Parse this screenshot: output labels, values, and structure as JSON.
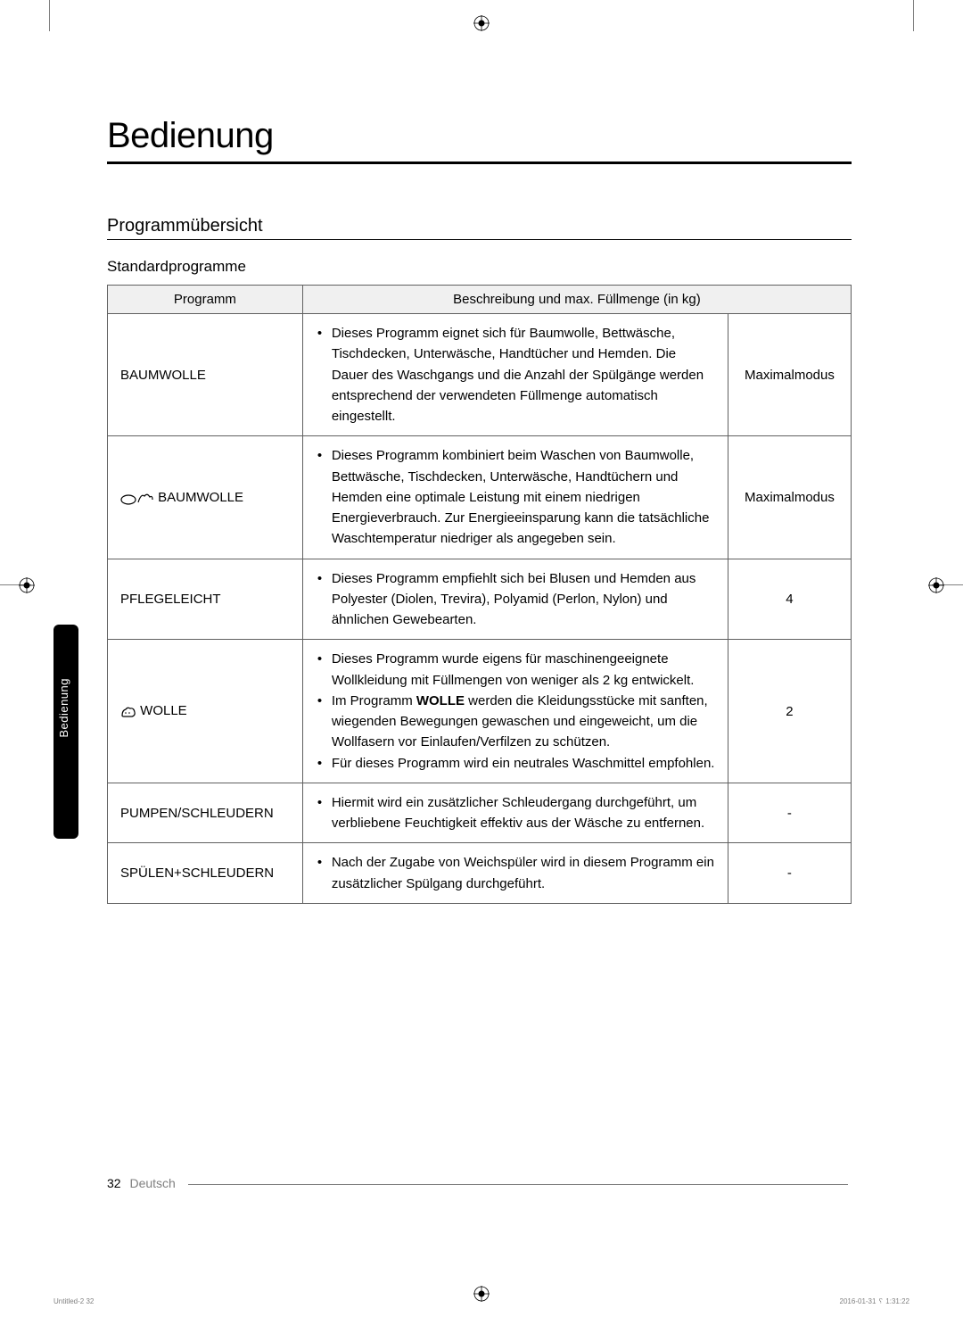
{
  "page": {
    "main_heading": "Bedienung",
    "section_heading": "Programmübersicht",
    "subsection_heading": "Standardprogramme",
    "side_tab": "Bedienung",
    "page_number": "32",
    "language": "Deutsch",
    "print_left": "Untitled-2   32",
    "print_right": "2016-01-31   ␦ 1:31:22"
  },
  "table": {
    "header_program": "Programm",
    "header_desc": "Beschreibung und max. Füllmenge (in kg)",
    "rows": [
      {
        "program": "BAUMWOLLE",
        "icon": null,
        "descriptions": [
          "Dieses Programm eignet sich für Baumwolle, Bettwäsche, Tischdecken, Unterwäsche, Handtücher und Hemden. Die Dauer des Waschgangs und die Anzahl der Spülgänge werden entsprechend der verwendeten Füllmenge automatisch eingestellt."
        ],
        "load": "Maximalmodus"
      },
      {
        "program": " BAUMWOLLE",
        "icon": "cotton-eco",
        "descriptions": [
          "Dieses Programm kombiniert beim Waschen von Baumwolle, Bettwäsche, Tischdecken, Unterwäsche, Handtüchern und Hemden eine optimale Leistung mit einem niedrigen Energieverbrauch. Zur Energieeinsparung kann die tatsächliche Waschtemperatur niedriger als angegeben sein."
        ],
        "load": "Maximalmodus"
      },
      {
        "program": "PFLEGELEICHT",
        "icon": null,
        "descriptions": [
          "Dieses Programm empfiehlt sich bei Blusen und Hemden aus Polyester (Diolen, Trevira), Polyamid (Perlon, Nylon) und ähnlichen Gewebearten."
        ],
        "load": "4"
      },
      {
        "program": " WOLLE",
        "icon": "wool",
        "descriptions": [
          "Dieses Programm wurde eigens für maschinengeeignete Wollkleidung mit Füllmengen von weniger als 2 kg entwickelt.",
          "Im Programm WOLLE werden die Kleidungsstücke mit sanften, wiegenden Bewegungen gewaschen und eingeweicht, um die Wollfasern vor Einlaufen/Verfilzen zu schützen.",
          "Für dieses Programm wird ein neutrales Waschmittel empfohlen."
        ],
        "load": "2",
        "strong_word": "WOLLE"
      },
      {
        "program": "PUMPEN/SCHLEUDERN",
        "icon": null,
        "descriptions": [
          "Hiermit wird ein zusätzlicher Schleudergang durchgeführt, um verbliebene Feuchtigkeit effektiv aus der Wäsche zu entfernen."
        ],
        "load": "-"
      },
      {
        "program": "SPÜLEN+SCHLEUDERN",
        "icon": null,
        "descriptions": [
          "Nach der Zugabe von Weichspüler wird in diesem Programm ein zusätzlicher Spülgang durchgeführt."
        ],
        "load": "-"
      }
    ]
  },
  "colors": {
    "text": "#000000",
    "border": "#606060",
    "header_bg": "#f0f0f0",
    "tab_bg": "#000000",
    "tab_text": "#ffffff",
    "footer_gray": "#808080"
  }
}
